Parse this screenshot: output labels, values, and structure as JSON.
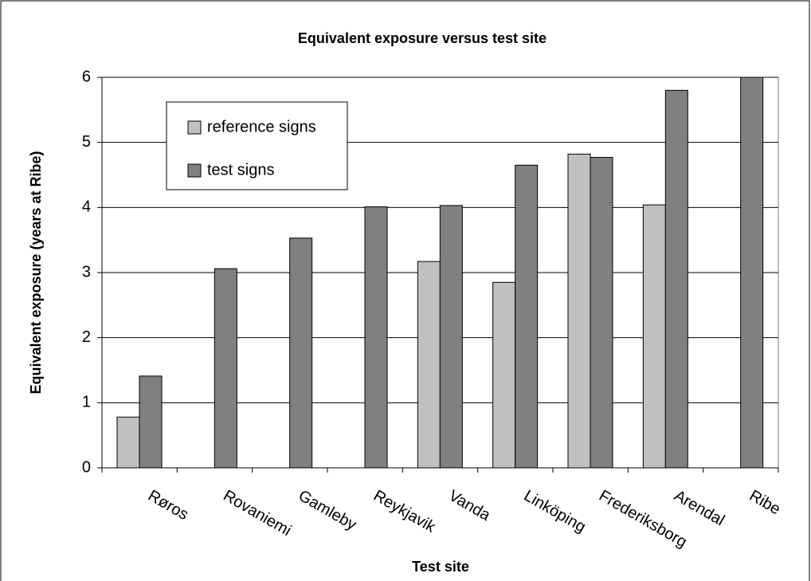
{
  "chart_data": {
    "type": "bar",
    "title": "Equivalent exposure versus test site",
    "x_label": "Test site",
    "y_label": "Equivalent exposure (years at Ribe)",
    "categories": [
      "Røros",
      "Rovaniemi",
      "Gamleby",
      "Reykjavik",
      "Vanda",
      "Linköping",
      "Frederiksborg",
      "Arendal",
      "Ribe"
    ],
    "series": [
      {
        "name": "reference signs",
        "color": "#c0c0c0",
        "values": [
          0.78,
          null,
          null,
          null,
          3.17,
          2.85,
          4.82,
          4.04,
          null
        ]
      },
      {
        "name": "test signs",
        "color": "#808080",
        "values": [
          1.41,
          3.06,
          3.53,
          4.01,
          4.03,
          4.65,
          4.77,
          5.8,
          6.0
        ]
      }
    ],
    "ylim": [
      0,
      6
    ],
    "yticks": [
      0,
      1,
      2,
      3,
      4,
      5,
      6
    ],
    "grid": true,
    "legend": "upper left"
  }
}
